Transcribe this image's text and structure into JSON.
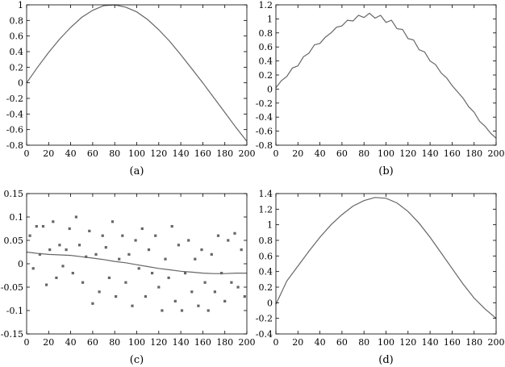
{
  "chart_data": [
    {
      "type": "line",
      "panel": "(a)",
      "caption": "(a)",
      "xlim": [
        0,
        200
      ],
      "ylim": [
        -0.8,
        1.0
      ],
      "xticks": [
        0,
        20,
        40,
        60,
        80,
        100,
        120,
        140,
        160,
        180,
        200
      ],
      "yticks": [
        -0.8,
        -0.6,
        -0.4,
        -0.2,
        0,
        0.2,
        0.4,
        0.6,
        0.8,
        1
      ],
      "grid": false,
      "series": [
        {
          "style": "line",
          "color": "#666666",
          "x": [
            0,
            10,
            20,
            30,
            40,
            50,
            60,
            70,
            80,
            90,
            100,
            110,
            120,
            130,
            140,
            150,
            160,
            170,
            180,
            190,
            200
          ],
          "y": [
            0.0,
            0.2,
            0.39,
            0.56,
            0.71,
            0.84,
            0.93,
            0.99,
            1.0,
            0.97,
            0.91,
            0.81,
            0.68,
            0.53,
            0.36,
            0.18,
            0.0,
            -0.19,
            -0.38,
            -0.57,
            -0.75
          ]
        }
      ]
    },
    {
      "type": "line",
      "panel": "(b)",
      "caption": "(b)",
      "xlim": [
        0,
        200
      ],
      "ylim": [
        -0.8,
        1.2
      ],
      "xticks": [
        0,
        20,
        40,
        60,
        80,
        100,
        120,
        140,
        160,
        180,
        200
      ],
      "yticks": [
        -0.8,
        -0.6,
        -0.4,
        -0.2,
        0,
        0.2,
        0.4,
        0.6,
        0.8,
        1,
        1.2
      ],
      "grid": false,
      "series": [
        {
          "style": "line",
          "color": "#666666",
          "x": [
            0,
            5,
            10,
            15,
            20,
            25,
            30,
            35,
            40,
            45,
            50,
            55,
            60,
            65,
            70,
            75,
            80,
            85,
            90,
            95,
            100,
            105,
            110,
            115,
            120,
            125,
            130,
            135,
            140,
            145,
            150,
            155,
            160,
            165,
            170,
            175,
            180,
            185,
            190,
            195,
            200
          ],
          "y": [
            0.02,
            0.12,
            0.18,
            0.3,
            0.33,
            0.46,
            0.51,
            0.63,
            0.65,
            0.74,
            0.8,
            0.88,
            0.9,
            0.98,
            0.97,
            1.05,
            1.02,
            1.08,
            1.01,
            1.05,
            0.95,
            0.98,
            0.86,
            0.85,
            0.72,
            0.7,
            0.56,
            0.53,
            0.4,
            0.35,
            0.23,
            0.16,
            0.05,
            -0.04,
            -0.13,
            -0.25,
            -0.33,
            -0.46,
            -0.53,
            -0.63,
            -0.7
          ]
        }
      ]
    },
    {
      "type": "scatter",
      "panel": "(c)",
      "caption": "(c)",
      "xlim": [
        0,
        200
      ],
      "ylim": [
        -0.15,
        0.15
      ],
      "xticks": [
        0,
        20,
        40,
        60,
        80,
        100,
        120,
        140,
        160,
        180,
        200
      ],
      "yticks": [
        -0.15,
        -0.1,
        -0.05,
        0,
        0.05,
        0.1,
        0.15
      ],
      "grid": false,
      "series": [
        {
          "style": "squares",
          "color": "#666666",
          "x": [
            3,
            6,
            9,
            12,
            15,
            18,
            21,
            24,
            27,
            30,
            33,
            36,
            39,
            42,
            45,
            48,
            51,
            54,
            57,
            60,
            63,
            66,
            69,
            72,
            75,
            78,
            81,
            84,
            87,
            90,
            93,
            96,
            99,
            102,
            105,
            108,
            111,
            114,
            117,
            120,
            123,
            126,
            129,
            132,
            135,
            138,
            141,
            144,
            147,
            150,
            153,
            156,
            159,
            162,
            165,
            168,
            171,
            174,
            177,
            180,
            183,
            186,
            189,
            192,
            195,
            198
          ],
          "y": [
            0.06,
            -0.01,
            0.08,
            0.02,
            0.08,
            -0.045,
            0.03,
            0.09,
            -0.03,
            0.04,
            -0.005,
            0.03,
            0.075,
            -0.02,
            0.1,
            0.04,
            -0.04,
            0.015,
            0.07,
            -0.085,
            0.02,
            -0.06,
            0.06,
            0.035,
            -0.03,
            0.09,
            -0.07,
            0.01,
            0.06,
            -0.04,
            0.02,
            -0.09,
            0.05,
            -0.01,
            0.075,
            -0.07,
            0.03,
            -0.02,
            0.06,
            -0.05,
            -0.1,
            0.01,
            -0.03,
            0.08,
            -0.08,
            0.04,
            -0.1,
            -0.02,
            0.05,
            -0.06,
            0.01,
            -0.09,
            0.03,
            -0.04,
            -0.1,
            0.02,
            -0.06,
            0.06,
            -0.02,
            -0.08,
            0.05,
            -0.04,
            0.065,
            -0.05,
            0.03,
            -0.07
          ]
        },
        {
          "style": "line",
          "color": "#999999",
          "x": [
            0,
            10,
            20,
            30,
            40,
            50,
            60,
            70,
            80,
            90,
            100,
            110,
            120,
            130,
            140,
            150,
            160,
            170,
            180,
            190,
            200
          ],
          "y": [
            0.025,
            0.022,
            0.02,
            0.019,
            0.018,
            0.015,
            0.012,
            0.009,
            0.005,
            0.002,
            -0.002,
            -0.006,
            -0.01,
            -0.013,
            -0.016,
            -0.018,
            -0.02,
            -0.021,
            -0.021,
            -0.02,
            -0.02
          ]
        }
      ]
    },
    {
      "type": "line",
      "panel": "(d)",
      "caption": "(d)",
      "xlim": [
        0,
        200
      ],
      "ylim": [
        -0.4,
        1.4
      ],
      "xticks": [
        0,
        20,
        40,
        60,
        80,
        100,
        120,
        140,
        160,
        180,
        200
      ],
      "yticks": [
        -0.4,
        -0.2,
        0,
        0.2,
        0.4,
        0.6,
        0.8,
        1,
        1.2,
        1.4
      ],
      "grid": false,
      "series": [
        {
          "style": "line",
          "color": "#666666",
          "x": [
            0,
            10,
            20,
            30,
            40,
            50,
            60,
            70,
            80,
            90,
            100,
            110,
            120,
            130,
            140,
            150,
            160,
            170,
            180,
            190,
            200
          ],
          "y": [
            -0.02,
            0.28,
            0.47,
            0.66,
            0.84,
            1.0,
            1.13,
            1.24,
            1.31,
            1.35,
            1.34,
            1.28,
            1.17,
            1.02,
            0.84,
            0.64,
            0.44,
            0.24,
            0.06,
            -0.08,
            -0.2
          ]
        }
      ]
    }
  ]
}
